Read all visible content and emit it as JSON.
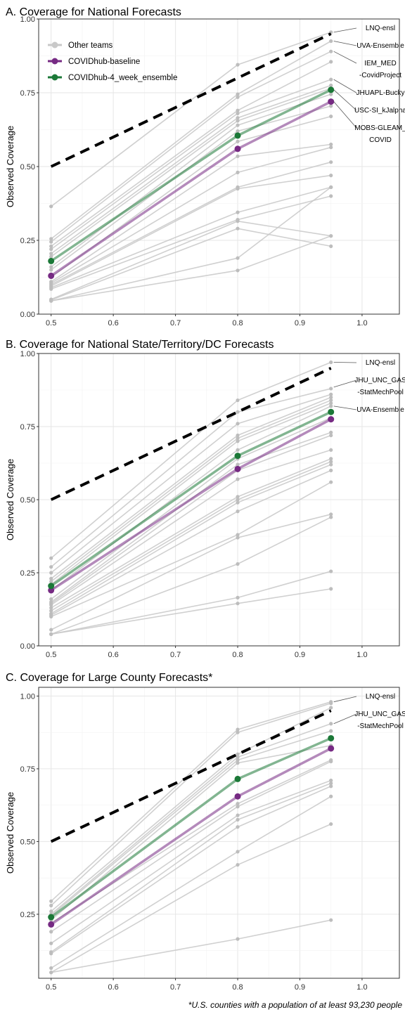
{
  "colors": {
    "other": "#c8c8c8",
    "baseline": "#762a83",
    "ensemble": "#1b7837",
    "ideal": "#000000"
  },
  "footnote": "*U.S. counties with a population of at least 93,230 people",
  "legend": [
    {
      "name": "Other teams",
      "color": "#c8c8c8"
    },
    {
      "name": "COVIDhub-baseline",
      "color": "#762a83"
    },
    {
      "name": "COVIDhub-4_week_ensemble",
      "color": "#1b7837"
    }
  ],
  "chart_data": [
    {
      "type": "line",
      "title": "A. Coverage for National Forecasts",
      "xlabel": "",
      "ylabel": "Observed Coverage",
      "xlim": [
        0.48,
        1.06
      ],
      "ylim": [
        0.0,
        1.0
      ],
      "xticks": [
        "0.5",
        "0.6",
        "0.7",
        "0.8",
        "0.9",
        "1.0"
      ],
      "yticks": [
        "0.00",
        "0.25",
        "0.50",
        "0.75",
        "1.00"
      ],
      "x": [
        0.5,
        0.8,
        0.95
      ],
      "ideal": [
        0.5,
        0.8,
        0.95
      ],
      "legend_position": "top-left",
      "other_teams": [
        [
          0.365,
          0.845,
          0.955
        ],
        [
          0.255,
          0.745,
          0.925
        ],
        [
          0.245,
          0.735,
          0.89
        ],
        [
          0.23,
          0.69,
          0.855
        ],
        [
          0.22,
          0.68,
          0.795
        ],
        [
          0.205,
          0.665,
          0.775
        ],
        [
          0.195,
          0.655,
          0.765
        ],
        [
          0.16,
          0.64,
          0.745
        ],
        [
          0.15,
          0.62,
          0.705
        ],
        [
          0.125,
          0.585,
          0.67
        ],
        [
          0.11,
          0.535,
          0.575
        ],
        [
          0.105,
          0.48,
          0.565
        ],
        [
          0.1,
          0.43,
          0.515
        ],
        [
          0.095,
          0.425,
          0.47
        ],
        [
          0.09,
          0.345,
          0.43
        ],
        [
          0.085,
          0.32,
          0.4
        ],
        [
          0.05,
          0.315,
          0.265
        ],
        [
          0.048,
          0.29,
          0.23
        ],
        [
          0.045,
          0.19,
          0.43
        ],
        [
          0.045,
          0.148,
          0.265
        ]
      ],
      "baseline": [
        0.13,
        0.56,
        0.72
      ],
      "ensemble": [
        0.18,
        0.605,
        0.76
      ],
      "annotations": [
        {
          "lines": [
            "LNQ-ensl"
          ],
          "y": 0.955
        },
        {
          "lines": [
            "UVA-Ensemble"
          ],
          "y": 0.925
        },
        {
          "lines": [
            "IEM_MED",
            "-CovidProject"
          ],
          "y": 0.89
        },
        {
          "lines": [
            "JHUAPL-Bucky"
          ],
          "y": 0.795
        },
        {
          "lines": [
            "USC-SI_kJalpha"
          ],
          "y": 0.76
        },
        {
          "lines": [
            "MOBS-GLEAM_",
            "COVID"
          ],
          "y": 0.72
        }
      ]
    },
    {
      "type": "line",
      "title": "B. Coverage for National State/Territory/DC Forecasts",
      "xlabel": "",
      "ylabel": "Observed Coverage",
      "xlim": [
        0.48,
        1.06
      ],
      "ylim": [
        0.0,
        1.0
      ],
      "xticks": [
        "0.5",
        "0.6",
        "0.7",
        "0.8",
        "0.9",
        "1.0"
      ],
      "yticks": [
        "0.00",
        "0.25",
        "0.50",
        "0.75",
        "1.00"
      ],
      "x": [
        0.5,
        0.8,
        0.95
      ],
      "ideal": [
        0.5,
        0.8,
        0.95
      ],
      "other_teams": [
        [
          0.3,
          0.84,
          0.97
        ],
        [
          0.27,
          0.8,
          0.88
        ],
        [
          0.25,
          0.76,
          0.86
        ],
        [
          0.23,
          0.72,
          0.85
        ],
        [
          0.22,
          0.71,
          0.84
        ],
        [
          0.21,
          0.7,
          0.83
        ],
        [
          0.19,
          0.67,
          0.82
        ],
        [
          0.16,
          0.64,
          0.78
        ],
        [
          0.15,
          0.62,
          0.73
        ],
        [
          0.145,
          0.6,
          0.72
        ],
        [
          0.14,
          0.57,
          0.67
        ],
        [
          0.13,
          0.51,
          0.64
        ],
        [
          0.12,
          0.5,
          0.63
        ],
        [
          0.11,
          0.49,
          0.62
        ],
        [
          0.105,
          0.46,
          0.6
        ],
        [
          0.1,
          0.38,
          0.56
        ],
        [
          0.055,
          0.37,
          0.45
        ],
        [
          0.04,
          0.28,
          0.44
        ],
        [
          0.04,
          0.165,
          0.255
        ],
        [
          0.04,
          0.145,
          0.195
        ]
      ],
      "baseline": [
        0.19,
        0.605,
        0.775
      ],
      "ensemble": [
        0.205,
        0.65,
        0.8
      ],
      "annotations": [
        {
          "lines": [
            "LNQ-ensl"
          ],
          "y": 0.97
        },
        {
          "lines": [
            "JHU_UNC_GAS",
            "-StatMechPool"
          ],
          "y": 0.885
        },
        {
          "lines": [
            "UVA-Ensemble"
          ],
          "y": 0.82
        }
      ]
    },
    {
      "type": "line",
      "title": "C. Coverage for Large County Forecasts*",
      "xlabel": "",
      "ylabel": "Observed Coverage",
      "xlim": [
        0.48,
        1.06
      ],
      "ylim": [
        0.03,
        1.03
      ],
      "xticks": [
        "0.5",
        "0.6",
        "0.7",
        "0.8",
        "0.9",
        "1.0"
      ],
      "yticks": [
        "0.25",
        "0.50",
        "0.75",
        "1.00"
      ],
      "x": [
        0.5,
        0.8,
        0.95
      ],
      "ideal": [
        0.5,
        0.8,
        0.95
      ],
      "other_teams": [
        [
          0.295,
          0.885,
          0.98
        ],
        [
          0.28,
          0.875,
          0.975
        ],
        [
          0.26,
          0.8,
          0.96
        ],
        [
          0.25,
          0.79,
          0.905
        ],
        [
          0.245,
          0.78,
          0.88
        ],
        [
          0.23,
          0.77,
          0.83
        ],
        [
          0.22,
          0.63,
          0.78
        ],
        [
          0.19,
          0.62,
          0.775
        ],
        [
          0.15,
          0.59,
          0.71
        ],
        [
          0.12,
          0.575,
          0.7
        ],
        [
          0.115,
          0.55,
          0.69
        ],
        [
          0.065,
          0.465,
          0.655
        ],
        [
          0.05,
          0.42,
          0.56
        ],
        [
          0.05,
          0.165,
          0.23
        ]
      ],
      "baseline": [
        0.215,
        0.655,
        0.82
      ],
      "ensemble": [
        0.24,
        0.715,
        0.855
      ],
      "annotations": [
        {
          "lines": [
            "LNQ-ensl"
          ],
          "y": 0.98
        },
        {
          "lines": [
            "JHU_UNC_GAS",
            "-StatMechPool"
          ],
          "y": 0.905
        }
      ]
    }
  ]
}
